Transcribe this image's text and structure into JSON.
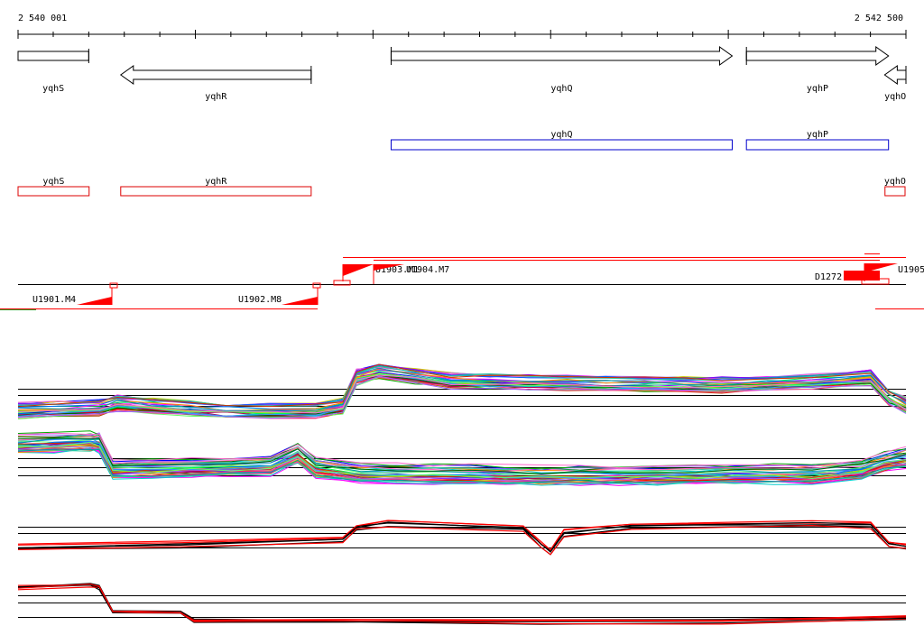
{
  "ruler": {
    "start_label": "2 540 001",
    "end_label": "2 542 500",
    "start": 2540001,
    "end": 2542500,
    "minor_tick_step": 100
  },
  "genes": [
    {
      "name": "yqhS",
      "start": 2540001,
      "end": 2540200,
      "strand": "+",
      "shape": "box"
    },
    {
      "name": "yqhR",
      "start": 2540290,
      "end": 2540826,
      "strand": "-",
      "shape": "arrow"
    },
    {
      "name": "yqhQ",
      "start": 2541051,
      "end": 2542011,
      "strand": "+",
      "shape": "arrow"
    },
    {
      "name": "yqhP",
      "start": 2542051,
      "end": 2542451,
      "strand": "+",
      "shape": "arrow"
    },
    {
      "name": "yqhO",
      "start": 2542440,
      "end": 2542500,
      "strand": "-",
      "shape": "arrow"
    }
  ],
  "blue_features": [
    {
      "name": "yqhQ",
      "start": 2541051,
      "end": 2542011
    },
    {
      "name": "yqhP",
      "start": 2542051,
      "end": 2542451
    }
  ],
  "red_features": [
    {
      "name": "yqhS",
      "start": 2540001,
      "end": 2540201
    },
    {
      "name": "yqhR",
      "start": 2540290,
      "end": 2540826
    },
    {
      "name": "yqhO",
      "start": 2542441,
      "end": 2542500
    }
  ],
  "tss_labels": [
    "U1901.M4",
    "U1902.M8",
    "U1903.M1",
    "U1904.M7",
    "D1272",
    "U1905"
  ],
  "colors": {
    "ruler": "#000000",
    "gene_outline": "#000000",
    "blue_feature": "#0000cc",
    "red_feature": "#dd0000",
    "promoter": "#ff0000",
    "baseline": "#000000"
  },
  "expression_panels": [
    {
      "id": "panel-1",
      "profile": "low-high-low",
      "traces": "many"
    },
    {
      "id": "panel-2",
      "profile": "high-low",
      "traces": "many"
    },
    {
      "id": "panel-3",
      "profile": "low-high-dip",
      "traces": "few"
    },
    {
      "id": "panel-4",
      "profile": "high-low",
      "traces": "few"
    }
  ]
}
